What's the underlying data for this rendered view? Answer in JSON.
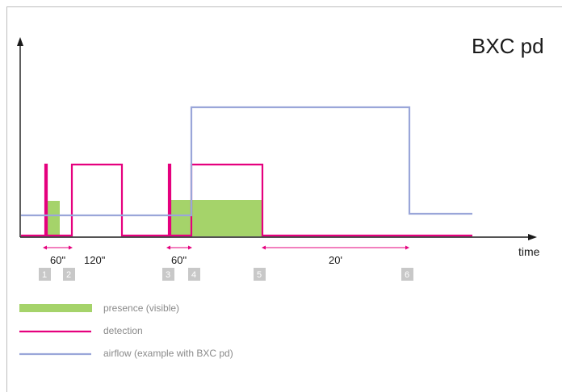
{
  "title": "BXC pd",
  "x_axis_label": "time",
  "colors": {
    "presence": "#a5d36a",
    "detection": "#e5007e",
    "airflow": "#9aa6d9",
    "axis": "#1a1a1a",
    "step_box": "#c8c8c8"
  },
  "dimensions": [
    {
      "label": "60\""
    },
    {
      "label": "120\""
    },
    {
      "label": "60\""
    },
    {
      "label": "20'"
    }
  ],
  "steps": [
    "1",
    "2",
    "3",
    "4",
    "5",
    "6"
  ],
  "legend": [
    {
      "label": "presence (visible)",
      "kind": "presence"
    },
    {
      "label": "detection",
      "kind": "detection"
    },
    {
      "label": "airflow (example with BXC pd)",
      "kind": "airflow"
    }
  ]
}
